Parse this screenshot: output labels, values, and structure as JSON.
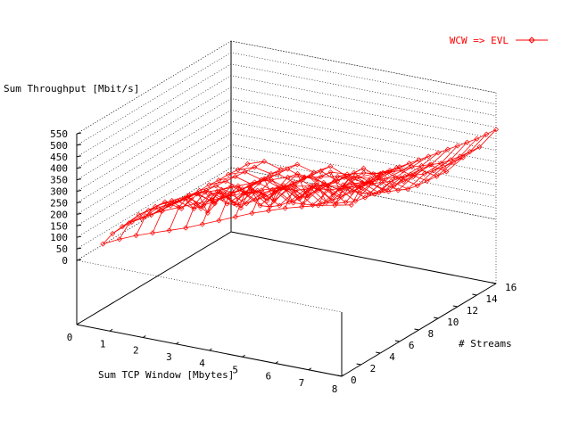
{
  "chart_data": {
    "type": "surface",
    "zlabel": "Sum Throughput [Mbit/s]",
    "xlabel": "Sum TCP Window [Mbytes]",
    "ylabel": "# Streams",
    "x_ticks": [
      "0",
      "1",
      "2",
      "3",
      "4",
      "5",
      "6",
      "7",
      "8"
    ],
    "y_ticks": [
      "0",
      "2",
      "4",
      "6",
      "8",
      "10",
      "12",
      "14",
      "16"
    ],
    "z_ticks": [
      "0",
      "50",
      "100",
      "150",
      "200",
      "250",
      "300",
      "350",
      "400",
      "450",
      "500",
      "550"
    ],
    "xlim": [
      0,
      8
    ],
    "ylim": [
      0,
      16
    ],
    "zlim": [
      0,
      550
    ],
    "grid": true,
    "legend_position": "top-right",
    "series": [
      {
        "name": "WCW => EVL",
        "color": "#ff0000",
        "x": [
          0.5,
          1,
          1.5,
          2,
          2.5,
          3,
          3.5,
          4,
          4.5,
          5,
          5.5,
          6,
          6.5,
          7,
          7.5,
          8
        ],
        "y": [
          1,
          2,
          3,
          4,
          5,
          6,
          7,
          8,
          9,
          10,
          11,
          12,
          13,
          14,
          15,
          16
        ],
        "z": [
          [
            60,
            95,
            125,
            150,
            175,
            200,
            230,
            260,
            290,
            320,
            345,
            370,
            390,
            410,
            425,
            440
          ],
          [
            80,
            140,
            185,
            220,
            250,
            280,
            310,
            340,
            370,
            395,
            420,
            440,
            455,
            470,
            480,
            490
          ],
          [
            85,
            150,
            200,
            240,
            275,
            305,
            330,
            360,
            390,
            415,
            440,
            455,
            470,
            485,
            495,
            505
          ],
          [
            80,
            145,
            195,
            180,
            260,
            230,
            320,
            300,
            380,
            350,
            430,
            420,
            465,
            470,
            490,
            500
          ],
          [
            70,
            130,
            170,
            200,
            150,
            250,
            200,
            290,
            260,
            330,
            300,
            380,
            360,
            430,
            460,
            490
          ],
          [
            60,
            120,
            160,
            130,
            220,
            180,
            260,
            220,
            300,
            260,
            340,
            300,
            390,
            380,
            440,
            480
          ],
          [
            55,
            110,
            90,
            170,
            140,
            200,
            160,
            240,
            200,
            280,
            230,
            320,
            300,
            370,
            420,
            470
          ],
          [
            50,
            100,
            80,
            150,
            110,
            180,
            130,
            220,
            170,
            250,
            200,
            300,
            270,
            350,
            400,
            460
          ],
          [
            50,
            90,
            70,
            120,
            90,
            150,
            110,
            190,
            140,
            220,
            180,
            280,
            250,
            330,
            390,
            450
          ],
          [
            45,
            80,
            60,
            110,
            80,
            140,
            100,
            170,
            120,
            200,
            160,
            250,
            230,
            310,
            370,
            440
          ],
          [
            40,
            75,
            55,
            100,
            70,
            125,
            90,
            155,
            110,
            180,
            150,
            230,
            210,
            290,
            350,
            430
          ],
          [
            40,
            70,
            50,
            90,
            65,
            115,
            80,
            140,
            100,
            165,
            140,
            210,
            190,
            270,
            330,
            420
          ],
          [
            35,
            65,
            45,
            85,
            60,
            105,
            75,
            130,
            95,
            155,
            130,
            200,
            180,
            260,
            320,
            410
          ],
          [
            35,
            60,
            40,
            80,
            55,
            100,
            70,
            120,
            90,
            150,
            125,
            190,
            175,
            250,
            310,
            400
          ],
          [
            30,
            55,
            40,
            75,
            50,
            95,
            65,
            115,
            85,
            145,
            120,
            185,
            170,
            245,
            305,
            395
          ],
          [
            30,
            55,
            35,
            70,
            50,
            90,
            60,
            110,
            80,
            140,
            115,
            180,
            165,
            240,
            300,
            390
          ]
        ]
      }
    ]
  }
}
